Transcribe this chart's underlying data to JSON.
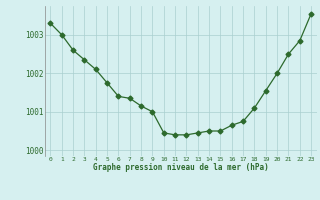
{
  "x": [
    0,
    1,
    2,
    3,
    4,
    5,
    6,
    7,
    8,
    9,
    10,
    11,
    12,
    13,
    14,
    15,
    16,
    17,
    18,
    19,
    20,
    21,
    22,
    23
  ],
  "y": [
    1003.3,
    1003.0,
    1002.6,
    1002.35,
    1002.1,
    1001.75,
    1001.4,
    1001.35,
    1001.15,
    1001.0,
    1000.45,
    1000.4,
    1000.4,
    1000.45,
    1000.5,
    1000.5,
    1000.65,
    1000.75,
    1001.1,
    1001.55,
    1002.0,
    1002.5,
    1002.85,
    1003.55
  ],
  "line_color": "#2d6a2d",
  "marker": "D",
  "marker_size": 2.5,
  "bg_color": "#d6f0f0",
  "grid_color": "#aacfcf",
  "xlabel": "Graphe pression niveau de la mer (hPa)",
  "xlabel_color": "#2d6a2d",
  "tick_color": "#2d6a2d",
  "ylim": [
    999.85,
    1003.75
  ],
  "yticks": [
    1000,
    1001,
    1002,
    1003
  ],
  "xlim": [
    -0.5,
    23.5
  ],
  "xticks": [
    0,
    1,
    2,
    3,
    4,
    5,
    6,
    7,
    8,
    9,
    10,
    11,
    12,
    13,
    14,
    15,
    16,
    17,
    18,
    19,
    20,
    21,
    22,
    23
  ]
}
